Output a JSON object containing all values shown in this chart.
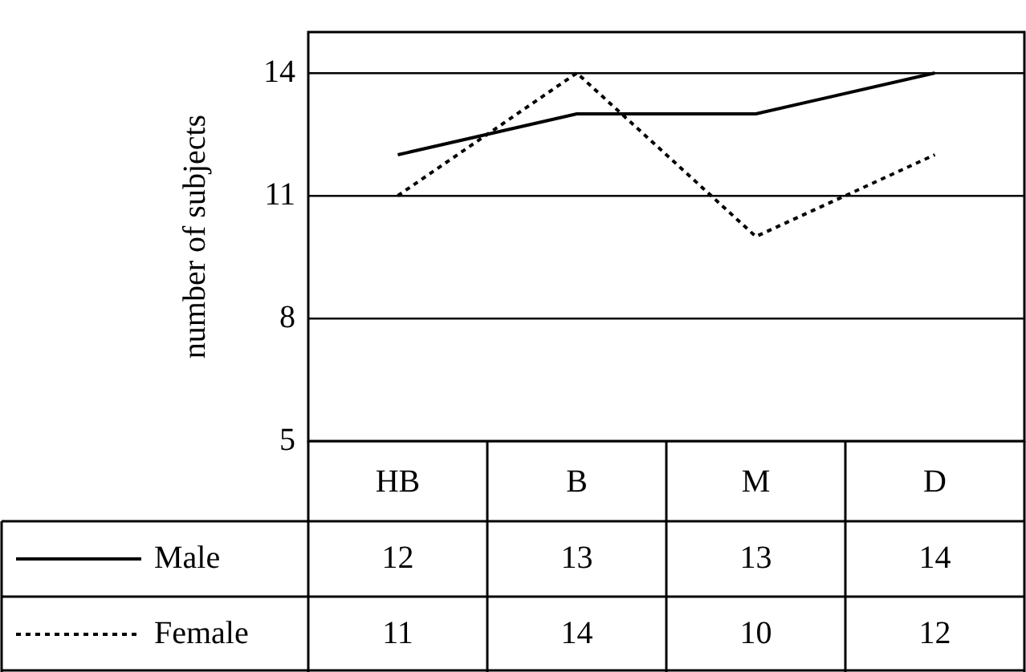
{
  "chart_data": {
    "type": "line",
    "ylabel": "number of subjects",
    "categories": [
      "HB",
      "B",
      "M",
      "D"
    ],
    "series": [
      {
        "name": "Male",
        "color": "#000000",
        "values": [
          12,
          13,
          13,
          14
        ],
        "line_style": "solid"
      },
      {
        "name": "Female",
        "color": "#000000",
        "values": [
          11,
          14,
          10,
          12
        ],
        "line_style": "dotted"
      }
    ],
    "ylim": [
      5,
      15
    ],
    "yticks": [
      5,
      8,
      11,
      14
    ],
    "grid": "y",
    "legend": "bottom",
    "marker": "none",
    "data_labels": true
  }
}
